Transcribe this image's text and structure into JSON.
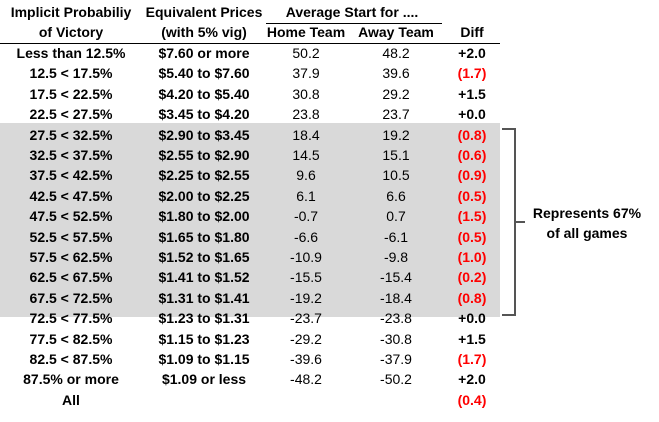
{
  "headers": {
    "prob_line1": "Implicit Probabiliy",
    "prob_line2": "of Victory",
    "price_line1": "Equivalent Prices",
    "price_line2": "(with 5% vig)",
    "avg_group": "Average Start for ....",
    "home": "Home Team",
    "away": "Away Team",
    "diff": "Diff"
  },
  "rows": [
    {
      "prob": "Less than 12.5%",
      "price": "$7.60 or more",
      "home": "50.2",
      "away": "48.2",
      "diff": "+2.0",
      "neg": false
    },
    {
      "prob": "12.5 < 17.5%",
      "price": "$5.40 to $7.60",
      "home": "37.9",
      "away": "39.6",
      "diff": "(1.7)",
      "neg": true
    },
    {
      "prob": "17.5 < 22.5%",
      "price": "$4.20 to $5.40",
      "home": "30.8",
      "away": "29.2",
      "diff": "+1.5",
      "neg": false
    },
    {
      "prob": "22.5 < 27.5%",
      "price": "$3.45 to $4.20",
      "home": "23.8",
      "away": "23.7",
      "diff": "+0.0",
      "neg": false
    },
    {
      "prob": "27.5 < 32.5%",
      "price": "$2.90 to $3.45",
      "home": "18.4",
      "away": "19.2",
      "diff": "(0.8)",
      "neg": true
    },
    {
      "prob": "32.5 < 37.5%",
      "price": "$2.55 to $2.90",
      "home": "14.5",
      "away": "15.1",
      "diff": "(0.6)",
      "neg": true
    },
    {
      "prob": "37.5 < 42.5%",
      "price": "$2.25 to $2.55",
      "home": "9.6",
      "away": "10.5",
      "diff": "(0.9)",
      "neg": true
    },
    {
      "prob": "42.5 < 47.5%",
      "price": "$2.00 to $2.25",
      "home": "6.1",
      "away": "6.6",
      "diff": "(0.5)",
      "neg": true
    },
    {
      "prob": "47.5 < 52.5%",
      "price": "$1.80 to $2.00",
      "home": "-0.7",
      "away": "0.7",
      "diff": "(1.5)",
      "neg": true
    },
    {
      "prob": "52.5 < 57.5%",
      "price": "$1.65 to $1.80",
      "home": "-6.6",
      "away": "-6.1",
      "diff": "(0.5)",
      "neg": true
    },
    {
      "prob": "57.5 < 62.5%",
      "price": "$1.52 to $1.65",
      "home": "-10.9",
      "away": "-9.8",
      "diff": "(1.0)",
      "neg": true
    },
    {
      "prob": "62.5 < 67.5%",
      "price": "$1.41 to $1.52",
      "home": "-15.5",
      "away": "-15.4",
      "diff": "(0.2)",
      "neg": true
    },
    {
      "prob": "67.5 < 72.5%",
      "price": "$1.31 to $1.41",
      "home": "-19.2",
      "away": "-18.4",
      "diff": "(0.8)",
      "neg": true
    },
    {
      "prob": "72.5 < 77.5%",
      "price": "$1.23 to $1.31",
      "home": "-23.7",
      "away": "-23.8",
      "diff": "+0.0",
      "neg": false
    },
    {
      "prob": "77.5 < 82.5%",
      "price": "$1.15 to $1.23",
      "home": "-29.2",
      "away": "-30.8",
      "diff": "+1.5",
      "neg": false
    },
    {
      "prob": "82.5 < 87.5%",
      "price": "$1.09 to $1.15",
      "home": "-39.6",
      "away": "-37.9",
      "diff": "(1.7)",
      "neg": true
    },
    {
      "prob": "87.5% or more",
      "price": "$1.09 or less",
      "home": "-48.2",
      "away": "-50.2",
      "diff": "+2.0",
      "neg": false
    },
    {
      "prob": "All",
      "price": "",
      "home": "",
      "away": "",
      "diff": "(0.4)",
      "neg": true
    }
  ],
  "annotation": {
    "line1": "Represents 67%",
    "line2": "of all games"
  },
  "colors": {
    "shade": "#d9d9d9",
    "negative": "#ff0000",
    "bracket": "#555555"
  }
}
